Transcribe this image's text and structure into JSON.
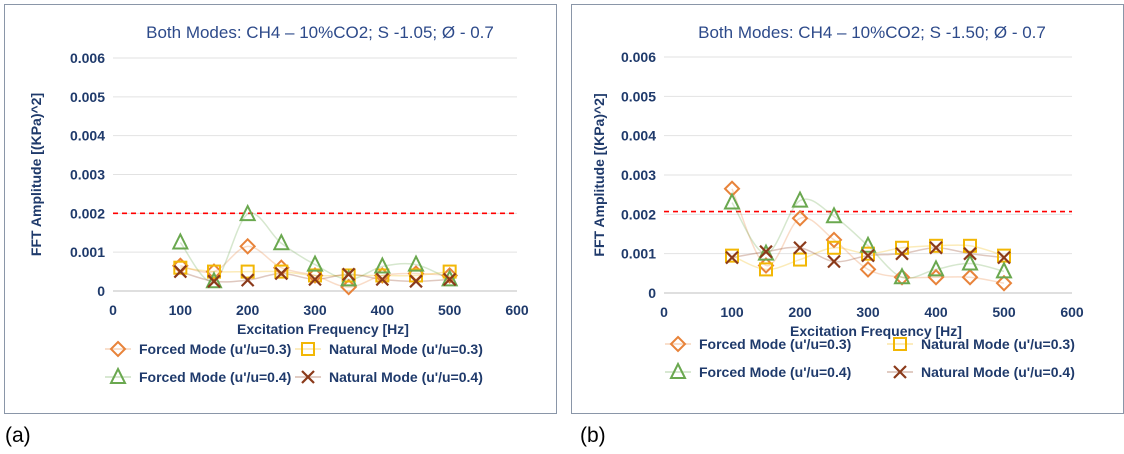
{
  "panels": [
    {
      "tag": "(a)"
    },
    {
      "tag": "(b)"
    }
  ],
  "colors": {
    "forced_03": "#e8833a",
    "natural_03": "#f2b705",
    "forced_04": "#6aa84f",
    "natural_04": "#8b3a1a",
    "reference": "#ff0000",
    "axis_text": "#1f3a6b"
  },
  "chart_data": [
    {
      "type": "scatter",
      "title": "Both Modes: CH4 – 10%CO2; S -1.05; Ø - 0.7",
      "xlabel": "Excitation Frequency [Hz]",
      "ylabel": "FFT Amplitude [(KPa)^2]",
      "xlim": [
        0,
        600
      ],
      "ylim": [
        0,
        0.006
      ],
      "xticks": [
        "0",
        "100",
        "200",
        "300",
        "400",
        "500",
        "600"
      ],
      "yticks": [
        "0",
        "0.001",
        "0.002",
        "0.003",
        "0.004",
        "0.005",
        "0.006"
      ],
      "grid": "horizontal",
      "reference_line": {
        "y": 0.002,
        "style": "dashed",
        "color": "#ff0000"
      },
      "legend_position": "bottom",
      "series": [
        {
          "name": "Forced Mode (u'/u=0.3)",
          "marker": "diamond",
          "x": [
            100,
            150,
            200,
            250,
            300,
            350,
            400,
            450,
            500
          ],
          "y": [
            0.00065,
            0.0005,
            0.00115,
            0.0006,
            0.0004,
            0.0001,
            0.0004,
            0.00045,
            0.0004
          ]
        },
        {
          "name": "Natural Mode (u'/u=0.3)",
          "marker": "square",
          "x": [
            100,
            150,
            200,
            250,
            300,
            350,
            400,
            450,
            500
          ],
          "y": [
            0.0006,
            0.0005,
            0.0005,
            0.0005,
            0.0004,
            0.0004,
            0.0004,
            0.0004,
            0.0005
          ]
        },
        {
          "name": "Forced Mode (u'/u=0.4)",
          "marker": "triangle",
          "x": [
            100,
            150,
            200,
            250,
            300,
            350,
            400,
            450,
            500
          ],
          "y": [
            0.00125,
            0.00025,
            0.00198,
            0.00123,
            0.00068,
            0.0003,
            0.00063,
            0.00068,
            0.0003
          ]
        },
        {
          "name": "Natural Mode (u'/u=0.4)",
          "marker": "x",
          "x": [
            100,
            150,
            200,
            250,
            300,
            350,
            400,
            450,
            500
          ],
          "y": [
            0.0005,
            0.00025,
            0.00028,
            0.00045,
            0.0003,
            0.00043,
            0.0003,
            0.00025,
            0.0003
          ]
        }
      ]
    },
    {
      "type": "scatter",
      "title": "Both Modes: CH4 – 10%CO2; S -1.50; Ø - 0.7",
      "xlabel": "Excitation Frequency [Hz]",
      "ylabel": "FFT Amplitude [(KPa)^2]",
      "xlim": [
        0,
        600
      ],
      "ylim": [
        0,
        0.006
      ],
      "xticks": [
        "0",
        "100",
        "200",
        "300",
        "400",
        "500",
        "600"
      ],
      "yticks": [
        "0",
        "0.001",
        "0.002",
        "0.003",
        "0.004",
        "0.005",
        "0.006"
      ],
      "grid": "horizontal",
      "reference_line": {
        "y": 0.00207,
        "style": "dashed",
        "color": "#ff0000"
      },
      "legend_position": "bottom",
      "series": [
        {
          "name": "Forced Mode (u'/u=0.3)",
          "marker": "diamond",
          "x": [
            100,
            150,
            200,
            250,
            300,
            350,
            400,
            450,
            500
          ],
          "y": [
            0.00265,
            0.0007,
            0.0019,
            0.00135,
            0.0006,
            0.0004,
            0.0004,
            0.0004,
            0.00025
          ]
        },
        {
          "name": "Natural Mode (u'/u=0.3)",
          "marker": "square",
          "x": [
            100,
            150,
            200,
            250,
            300,
            350,
            400,
            450,
            500
          ],
          "y": [
            0.00095,
            0.0006,
            0.00085,
            0.00115,
            0.001,
            0.00115,
            0.0012,
            0.0012,
            0.00095
          ]
        },
        {
          "name": "Forced Mode (u'/u=0.4)",
          "marker": "triangle",
          "x": [
            100,
            150,
            200,
            250,
            300,
            350,
            400,
            450,
            500
          ],
          "y": [
            0.0023,
            0.001,
            0.00235,
            0.00195,
            0.0012,
            0.0004,
            0.0006,
            0.00075,
            0.00055
          ]
        },
        {
          "name": "Natural Mode (u'/u=0.4)",
          "marker": "x",
          "x": [
            100,
            150,
            200,
            250,
            300,
            350,
            400,
            450,
            500
          ],
          "y": [
            0.0009,
            0.00105,
            0.00115,
            0.0008,
            0.00095,
            0.001,
            0.00115,
            0.001,
            0.0009
          ]
        }
      ]
    }
  ]
}
